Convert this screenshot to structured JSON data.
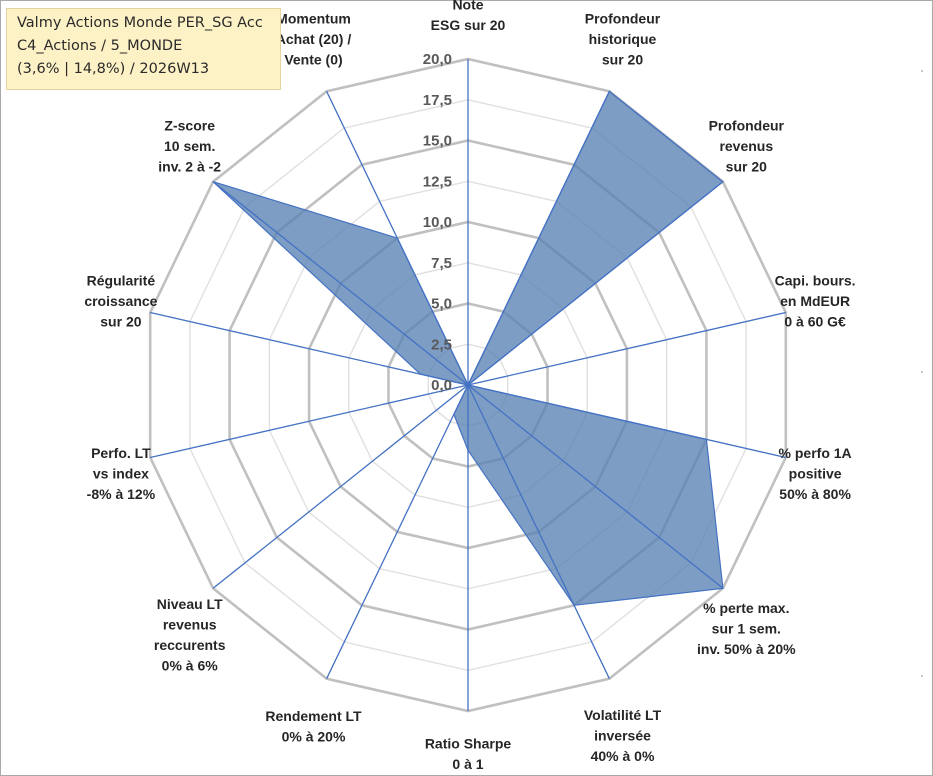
{
  "info_box": {
    "line1": "Valmy Actions Monde PER_SG Acc",
    "line2": "C4_Actions / 5_MONDE",
    "line3": "(3,6% | 14,8%) / 2026W13"
  },
  "colors": {
    "fill": "#5a82b4",
    "stroke": "#4472c4",
    "grid_outer": "#c0c0c0",
    "grid_inner": "#e0e0e0",
    "tick_text": "#595959",
    "label_text": "#262626",
    "info_bg": "#fdf1c6"
  },
  "chart_data": {
    "type": "radar",
    "grid": true,
    "rmax": 20,
    "tick_step": 2.5,
    "tick_labels": [
      "0,0",
      "2,5",
      "5,0",
      "7,5",
      "10,0",
      "12,5",
      "15,0",
      "17,5",
      "20,0"
    ],
    "categories": [
      [
        "Note",
        "ESG sur 20"
      ],
      [
        "Profondeur",
        "historique",
        "sur 20"
      ],
      [
        "Profondeur",
        "revenus",
        "sur 20"
      ],
      [
        "Capi. bours.",
        "en MdEUR",
        "0 à 60 G€"
      ],
      [
        "% perfo 1A",
        "positive",
        "50% à 80%"
      ],
      [
        "% perte max.",
        "sur 1 sem.",
        "inv. 50% à 20%"
      ],
      [
        "Volatilité LT",
        "inversée",
        "40% à 0%"
      ],
      [
        "Ratio Sharpe",
        "0 à 1"
      ],
      [
        "Rendement LT",
        "0% à 20%"
      ],
      [
        "Niveau LT",
        "revenus",
        "reccurents",
        "0% à 6%"
      ],
      [
        "Perfo. LT",
        "vs index",
        "-8% à 12%"
      ],
      [
        "Régularité",
        "croissance",
        "sur 20"
      ],
      [
        "Z-score",
        "10 sem.",
        "inv. 2 à -2"
      ],
      [
        "Momentum",
        "Achat (20) /",
        "Vente (0)"
      ]
    ],
    "series": [
      {
        "values": [
          0,
          20,
          20,
          0,
          15,
          20,
          15,
          4,
          2,
          0,
          0,
          3,
          20,
          10
        ]
      }
    ]
  }
}
